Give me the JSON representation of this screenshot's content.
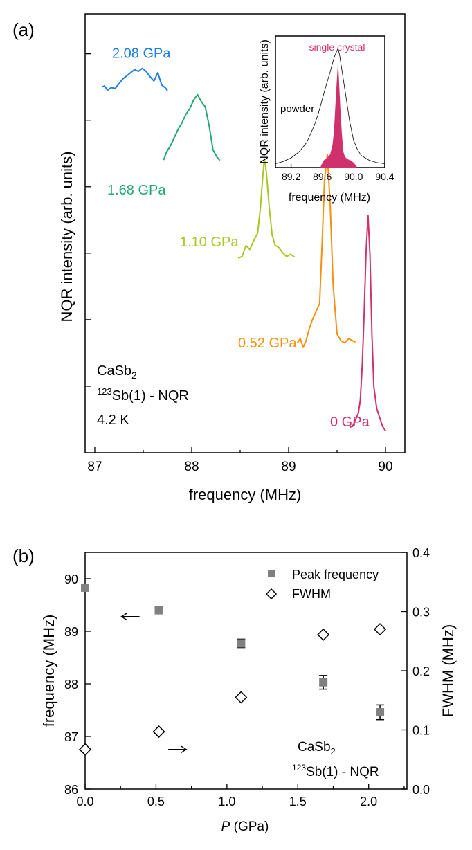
{
  "chart_data": [
    {
      "type": "line",
      "panel_label": "(a)",
      "xlabel": "frequency (MHz)",
      "ylabel": "NQR intensity (arb. units)",
      "xlim": [
        86.9,
        90.2
      ],
      "x_ticks": [
        "87",
        "88",
        "89",
        "90"
      ],
      "annotation": {
        "compound": "CaSb",
        "compound_sub": "2",
        "isotope_sup": "123",
        "isotope_rest": "Sb(1) - NQR",
        "temperature": "4.2 K"
      },
      "series": [
        {
          "name": "2.08 GPa",
          "color": "#1a7ee6",
          "label_x": 87.0,
          "x": [
            87.07,
            87.1,
            87.13,
            87.17,
            87.21,
            87.25,
            87.29,
            87.33,
            87.37,
            87.41,
            87.45,
            87.49,
            87.53,
            87.57,
            87.61,
            87.65,
            87.69,
            87.73,
            87.75
          ],
          "y": [
            0.833,
            0.836,
            0.826,
            0.832,
            0.83,
            0.841,
            0.852,
            0.859,
            0.866,
            0.873,
            0.869,
            0.876,
            0.869,
            0.857,
            0.847,
            0.866,
            0.838,
            0.831,
            0.825
          ]
        },
        {
          "name": "1.68 GPa",
          "color": "#22a86e",
          "label_x": 87.0,
          "x": [
            87.71,
            87.74,
            87.78,
            87.82,
            87.86,
            87.9,
            87.94,
            87.98,
            88.02,
            88.06,
            88.1,
            88.14,
            88.18,
            88.22,
            88.26,
            88.29
          ],
          "y": [
            0.667,
            0.685,
            0.699,
            0.718,
            0.737,
            0.752,
            0.771,
            0.784,
            0.804,
            0.816,
            0.8,
            0.788,
            0.745,
            0.69,
            0.674,
            0.666
          ]
        },
        {
          "name": "1.10 GPa",
          "color": "#a6c825",
          "label_x": 87.75,
          "x": [
            88.48,
            88.52,
            88.56,
            88.6,
            88.64,
            88.68,
            88.71,
            88.73,
            88.75,
            88.77,
            88.8,
            88.83,
            88.86,
            88.9,
            88.94,
            88.98,
            89.02,
            89.06
          ],
          "y": [
            0.443,
            0.447,
            0.472,
            0.463,
            0.483,
            0.5,
            0.56,
            0.62,
            0.67,
            0.64,
            0.56,
            0.496,
            0.473,
            0.467,
            0.455,
            0.447,
            0.452,
            0.446
          ]
        },
        {
          "name": "0.52 GPa",
          "color": "#f7900f",
          "label_x": 88.35,
          "x": [
            89.09,
            89.12,
            89.15,
            89.18,
            89.21,
            89.24,
            89.28,
            89.32,
            89.35,
            89.37,
            89.4,
            89.43,
            89.46,
            89.5,
            89.54,
            89.58,
            89.62,
            89.66,
            89.69
          ],
          "y": [
            0.25,
            0.26,
            0.24,
            0.255,
            0.28,
            0.3,
            0.32,
            0.34,
            0.5,
            0.62,
            0.68,
            0.56,
            0.38,
            0.27,
            0.255,
            0.25,
            0.26,
            0.255,
            0.252
          ]
        },
        {
          "name": "0 GPa",
          "color": "#d0306c",
          "label_x": 89.3,
          "x": [
            89.63,
            89.66,
            89.69,
            89.72,
            89.74,
            89.76,
            89.78,
            89.8,
            89.82,
            89.84,
            89.86,
            89.88,
            89.91,
            89.94,
            89.97,
            90.0
          ],
          "y": [
            0.058,
            0.06,
            0.075,
            0.09,
            0.12,
            0.2,
            0.32,
            0.46,
            0.54,
            0.45,
            0.27,
            0.15,
            0.1,
            0.08,
            0.06,
            0.05
          ]
        }
      ],
      "inset": {
        "xlabel": "frequency (MHz)",
        "ylabel": "NQR intensity (arb. units)",
        "xlim": [
          89.0,
          90.4
        ],
        "x_ticks": [
          "89.2",
          "89.6",
          "90.0",
          "90.4"
        ],
        "powder_label": "powder",
        "single_crystal_label": "single crystal",
        "single_crystal_color": "#d0306c",
        "powder": {
          "x": [
            89.0,
            89.1,
            89.2,
            89.3,
            89.4,
            89.5,
            89.55,
            89.6,
            89.65,
            89.7,
            89.75,
            89.78,
            89.8,
            89.82,
            89.85,
            89.9,
            89.95,
            90.0,
            90.05,
            90.1,
            90.2,
            90.3,
            90.4
          ],
          "y": [
            0.02,
            0.04,
            0.07,
            0.12,
            0.2,
            0.35,
            0.45,
            0.57,
            0.69,
            0.8,
            0.92,
            0.97,
            1.0,
            0.95,
            0.82,
            0.6,
            0.38,
            0.22,
            0.14,
            0.09,
            0.05,
            0.03,
            0.02
          ]
        },
        "single": {
          "x": [
            89.58,
            89.62,
            89.66,
            89.7,
            89.73,
            89.75,
            89.77,
            89.79,
            89.8,
            89.81,
            89.83,
            89.85,
            89.87,
            89.89,
            89.92,
            89.96,
            90.0,
            90.04
          ],
          "y": [
            0.0,
            0.05,
            0.07,
            0.1,
            0.18,
            0.3,
            0.55,
            0.78,
            0.88,
            0.78,
            0.5,
            0.28,
            0.12,
            0.08,
            0.06,
            0.05,
            0.03,
            0.0
          ]
        }
      }
    },
    {
      "type": "scatter",
      "panel_label": "(b)",
      "xlabel_var": "P",
      "xlabel_unit": " (GPa)",
      "ylabel_left": "frequency (MHz)",
      "ylabel_right": "FWHM (MHz)",
      "xlim": [
        0.0,
        2.27
      ],
      "ylim_left": [
        86.0,
        90.5
      ],
      "ylim_right": [
        0.0,
        0.4
      ],
      "x_ticks": [
        "0.0",
        "0.5",
        "1.0",
        "1.5",
        "2.0"
      ],
      "y_ticks_left": [
        "86",
        "87",
        "88",
        "89",
        "90"
      ],
      "y_ticks_right": [
        "0.0",
        "0.1",
        "0.2",
        "0.3",
        "0.4"
      ],
      "legend_position": "top-right",
      "annotation": {
        "compound": "CaSb",
        "compound_sub": "2",
        "isotope_sup": "123",
        "isotope_rest": "Sb(1) - NQR"
      },
      "series": [
        {
          "name": "Peak frequency",
          "marker": "filled-square",
          "color": "#808080",
          "axis": "left",
          "x": [
            0.0,
            0.52,
            1.1,
            1.68,
            2.08
          ],
          "y": [
            89.83,
            89.4,
            88.77,
            88.03,
            87.46
          ],
          "err": [
            0.04,
            0.06,
            0.08,
            0.13,
            0.14
          ]
        },
        {
          "name": "FWHM",
          "marker": "open-diamond",
          "color": "#000000",
          "axis": "right",
          "x": [
            0.0,
            0.52,
            1.1,
            1.68,
            2.08
          ],
          "y": [
            0.067,
            0.097,
            0.155,
            0.261,
            0.27
          ]
        }
      ],
      "arrows": [
        {
          "direction": "left",
          "axis": "left",
          "x": 0.32,
          "y": 89.28
        },
        {
          "direction": "right",
          "axis": "right",
          "x": 0.65,
          "y": 0.067
        }
      ]
    }
  ]
}
